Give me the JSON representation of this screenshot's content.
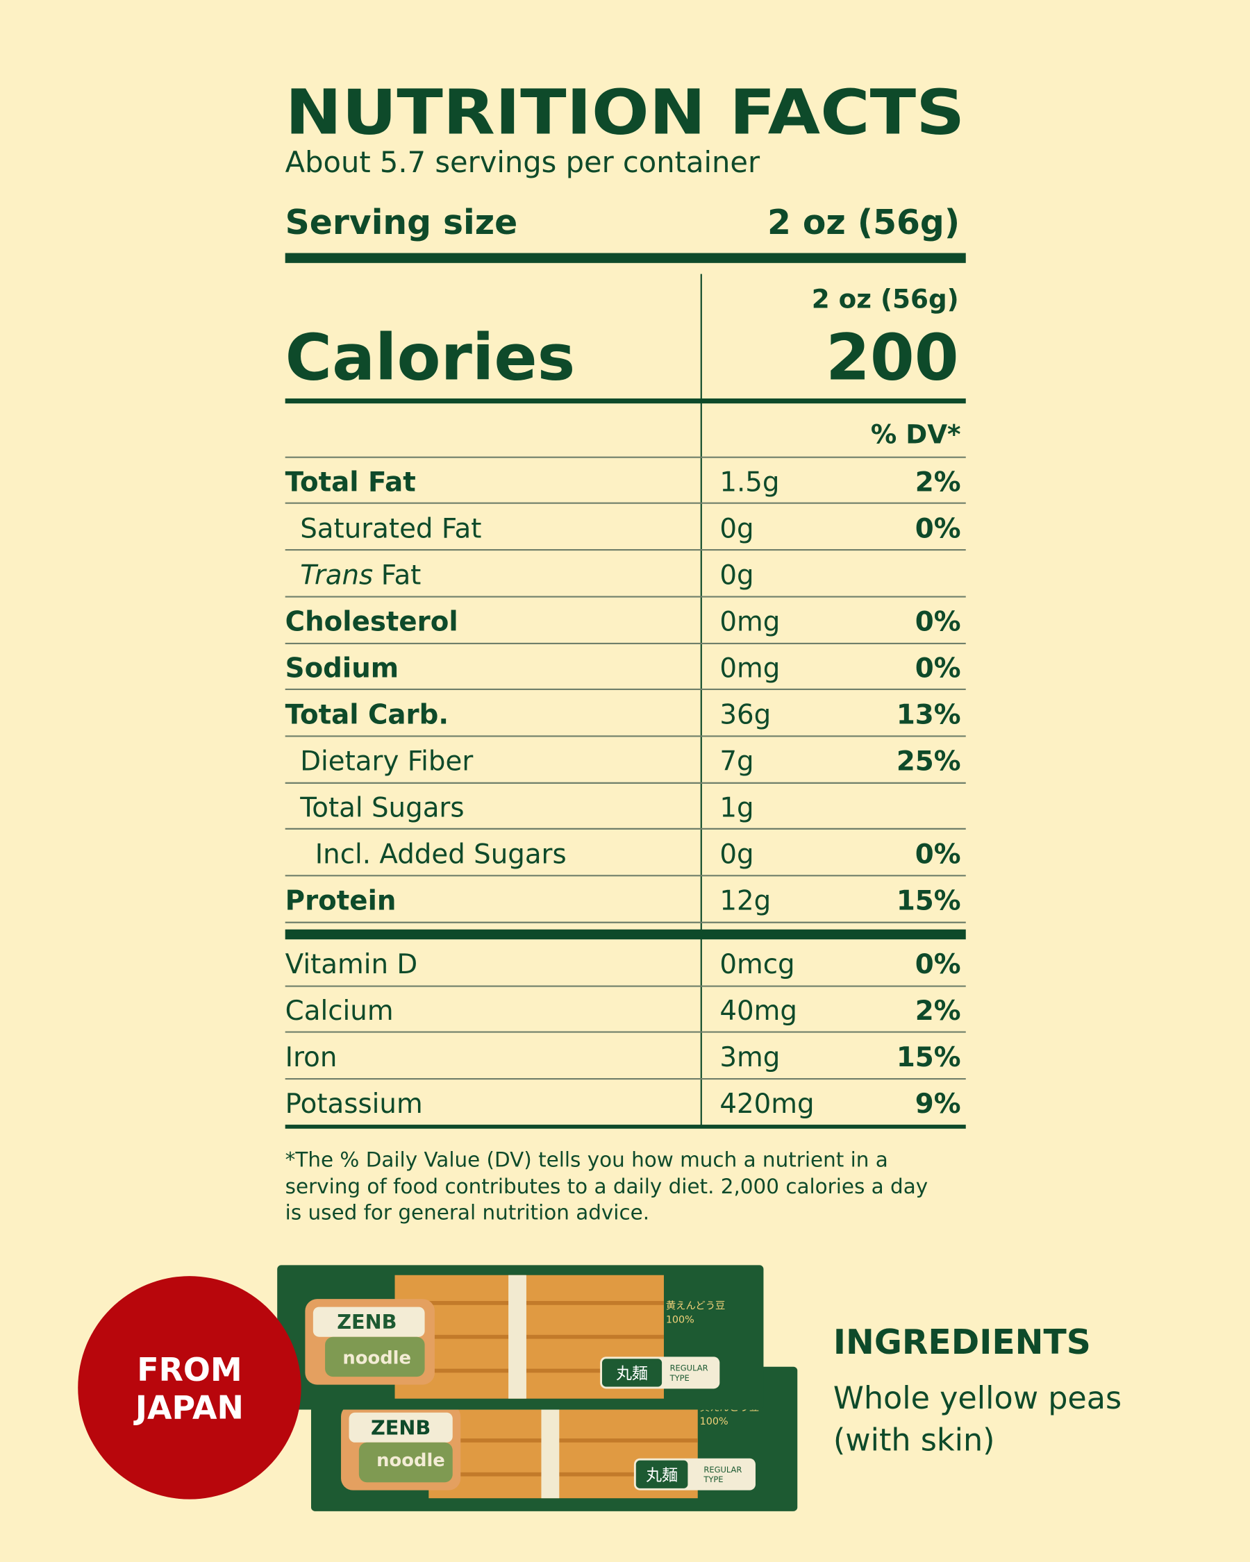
{
  "header": {
    "title": "NUTRITION FACTS",
    "servings": "About 5.7 servings per container",
    "serving_size_label": "Serving size",
    "serving_size_value": "2 oz (56g)"
  },
  "calories": {
    "column_header": "2 oz (56g)",
    "label": "Calories",
    "value": "200"
  },
  "table": {
    "dv_header": "% DV*",
    "rows": [
      {
        "name": "Total Fat",
        "amount": "1.5g",
        "dv": "2%"
      },
      {
        "name": "Saturated Fat",
        "amount": "0g",
        "dv": "0%"
      },
      {
        "name_italic": "Trans",
        "name": "Fat",
        "amount": "0g"
      },
      {
        "name": "Cholesterol",
        "amount": "0mg",
        "dv": "0%"
      },
      {
        "name": "Sodium",
        "amount": "0mg",
        "dv": "0%"
      },
      {
        "name": "Total Carb.",
        "amount": "36g",
        "dv": "13%"
      },
      {
        "name": "Dietary Fiber",
        "amount": "7g",
        "dv": "25%"
      },
      {
        "name": "Total Sugars",
        "amount": "1g"
      },
      {
        "name": "Incl. Added Sugars",
        "amount": "0g",
        "dv": "0%"
      },
      {
        "name": "Protein",
        "amount": "12g",
        "dv": "15%"
      }
    ],
    "vitamins": [
      {
        "name": "Vitamin D",
        "amount": "0mcg",
        "dv": "0%"
      },
      {
        "name": "Calcium",
        "amount": "40mg",
        "dv": "2%"
      },
      {
        "name": "Iron",
        "amount": "3mg",
        "dv": "15%"
      },
      {
        "name": "Potassium",
        "amount": "420mg",
        "dv": "9%"
      }
    ]
  },
  "footnote": [
    "*The % Daily Value (DV) tells you how much a nutrient in a",
    "serving of food contributes to a daily diet. 2,000 calories a day",
    "is used for general nutrition advice."
  ],
  "badge": [
    "FROM",
    "JAPAN"
  ],
  "package": {
    "brand": "ZENB",
    "product": "noodle",
    "kanji": "丸麺",
    "type": [
      "REGULAR",
      "TYPE"
    ],
    "origin": [
      "黄えんどう豆",
      "100%"
    ]
  },
  "ingredients": {
    "title": "INGREDIENTS",
    "text": [
      "Whole yellow peas",
      "(with skin)"
    ]
  }
}
